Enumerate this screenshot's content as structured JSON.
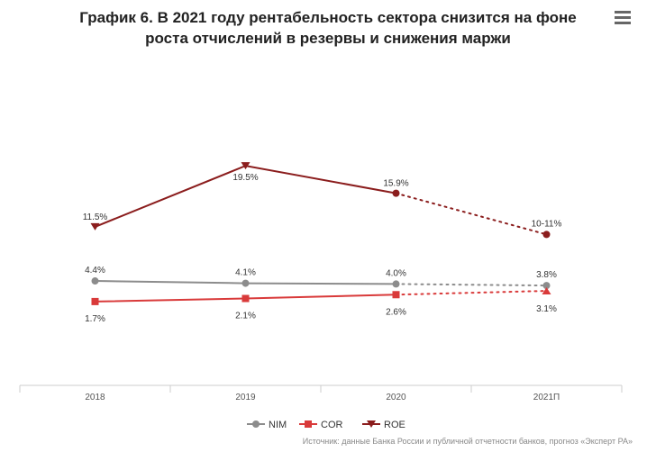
{
  "title_line1": "График 6. В 2021 году рентабельность сектора снизится на фоне",
  "title_line2": "роста отчислений в резервы и снижения маржи",
  "menu_icon": "hamburger-menu-icon",
  "source": "Источник: данные Банка России и публичной отчетности банков, прогноз «Эксперт РА»",
  "chart_data": {
    "type": "line",
    "categories": [
      "2018",
      "2019",
      "2020",
      "2021П"
    ],
    "ylim": [
      0,
      22
    ],
    "grid": false,
    "legend_position": "bottom-center",
    "series": [
      {
        "name": "NIM",
        "color": "#8c8c8c",
        "marker": "circle",
        "values": [
          4.4,
          4.1,
          4.0,
          3.8
        ],
        "labels": [
          "4.4%",
          "4.1%",
          "4.0%",
          "3.8%"
        ],
        "forecast_from_index": 2
      },
      {
        "name": "COR",
        "color": "#d93a3a",
        "marker": "square",
        "values": [
          1.7,
          2.1,
          2.6,
          3.1
        ],
        "labels": [
          "1.7%",
          "2.1%",
          "2.6%",
          "3.1%"
        ],
        "forecast_from_index": 2
      },
      {
        "name": "ROE",
        "color": "#8b1d1d",
        "marker": "triangle-down",
        "values": [
          11.5,
          19.5,
          15.9,
          10.5
        ],
        "labels": [
          "11.5%",
          "19.5%",
          "15.9%",
          "10-11%"
        ],
        "forecast_from_index": 2
      }
    ]
  }
}
